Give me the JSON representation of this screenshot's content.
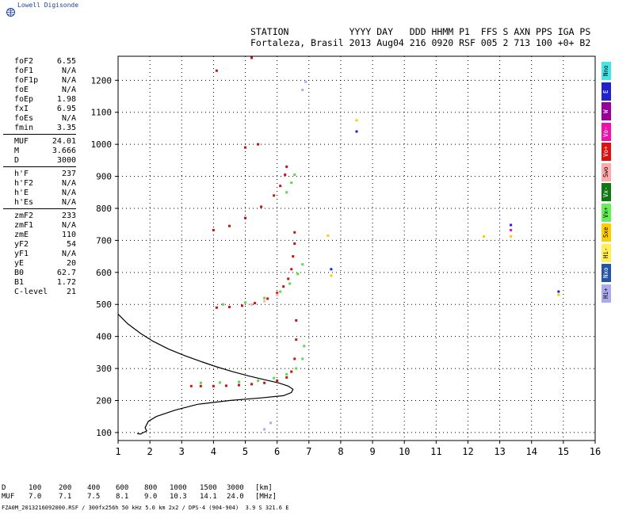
{
  "brand": {
    "name": "Lowell Digisonde"
  },
  "header": {
    "line1": "STATION           YYYY DAY   DDD HHMM P1  FFS S AXN PPS IGA PS",
    "line2": "Fortaleza, Brasil 2013 Aug04 216 0920 RSF 005 2 713 100 +0+ B2"
  },
  "params": [
    {
      "label": "foF2",
      "value": "6.55"
    },
    {
      "label": "foF1",
      "value": "N/A"
    },
    {
      "label": "foF1p",
      "value": "N/A"
    },
    {
      "label": "foE",
      "value": "N/A"
    },
    {
      "label": "foEp",
      "value": "1.98"
    },
    {
      "label": "fxI",
      "value": "6.95"
    },
    {
      "label": "foEs",
      "value": "N/A"
    },
    {
      "label": "fmin",
      "value": "3.35"
    },
    {
      "label": "MUF",
      "value": "24.01"
    },
    {
      "label": "M",
      "value": "3.666"
    },
    {
      "label": "D",
      "value": "3000"
    },
    {
      "label": "h'F",
      "value": "237"
    },
    {
      "label": "h'F2",
      "value": "N/A"
    },
    {
      "label": "h'E",
      "value": "N/A"
    },
    {
      "label": "h'Es",
      "value": "N/A"
    },
    {
      "label": "zmF2",
      "value": "233"
    },
    {
      "label": "zmF1",
      "value": "N/A"
    },
    {
      "label": "zmE",
      "value": "110"
    },
    {
      "label": "yF2",
      "value": "54"
    },
    {
      "label": "yF1",
      "value": "N/A"
    },
    {
      "label": "yE",
      "value": "20"
    },
    {
      "label": "B0",
      "value": "62.7"
    },
    {
      "label": "B1",
      "value": "1.72"
    },
    {
      "label": "C-level",
      "value": "21"
    }
  ],
  "legend": [
    {
      "label": "Nno",
      "color": "#44e5e5"
    },
    {
      "label": "E",
      "color": "#2222cc"
    },
    {
      "label": "W",
      "color": "#990099"
    },
    {
      "label": "Vo-",
      "color": "#ee11aa"
    },
    {
      "label": "Vo+",
      "color": "#dd1111"
    },
    {
      "label": "Swo",
      "color": "#ffaaaa"
    },
    {
      "label": "Vx-",
      "color": "#117711"
    },
    {
      "label": "Vx+",
      "color": "#66ee55"
    },
    {
      "label": "Sxe",
      "color": "#ffcc00"
    },
    {
      "label": "Hi-",
      "color": "#ffee55"
    },
    {
      "label": "Nxo",
      "color": "#2255aa"
    },
    {
      "label": "Hi+",
      "color": "#aaaaee"
    }
  ],
  "distance_table": {
    "D_label": "D",
    "D_values": [
      "100",
      "200",
      "400",
      "600",
      "800",
      "1000",
      "1500",
      "3000"
    ],
    "D_unit": "[km]",
    "MUF_label": "MUF",
    "MUF_values": [
      "7.0",
      "7.1",
      "7.5",
      "8.1",
      "9.0",
      "10.3",
      "14.1",
      "24.0"
    ],
    "MUF_unit": "[MHz]"
  },
  "footer": "FZA0M_2013216092000.RSF / 300fx256h 50 kHz 5.0 km 2x2 / DPS-4 (904-904)  3.9 S 321.6 E",
  "chart_data": {
    "type": "scatter",
    "xlim": [
      1,
      16
    ],
    "ylim": [
      75,
      1275
    ],
    "x_ticks": [
      1,
      2,
      3,
      4,
      5,
      6,
      7,
      8,
      9,
      10,
      11,
      12,
      13,
      14,
      15,
      16
    ],
    "y_ticks": [
      100,
      200,
      300,
      400,
      500,
      600,
      700,
      800,
      900,
      1000,
      1100,
      1200
    ],
    "grid": true,
    "series": [
      {
        "name": "Vo+",
        "color": "#cc1111",
        "points": [
          [
            3.3,
            245
          ],
          [
            3.6,
            245
          ],
          [
            4.0,
            245
          ],
          [
            4.4,
            246
          ],
          [
            4.8,
            248
          ],
          [
            5.2,
            251
          ],
          [
            5.6,
            255
          ],
          [
            6.0,
            262
          ],
          [
            6.3,
            272
          ],
          [
            6.45,
            290
          ],
          [
            6.55,
            330
          ],
          [
            6.6,
            390
          ],
          [
            6.6,
            450
          ],
          [
            4.1,
            490
          ],
          [
            4.5,
            492
          ],
          [
            4.9,
            496
          ],
          [
            5.3,
            504
          ],
          [
            5.7,
            518
          ],
          [
            6.0,
            536
          ],
          [
            6.2,
            556
          ],
          [
            6.35,
            580
          ],
          [
            6.45,
            610
          ],
          [
            6.5,
            650
          ],
          [
            6.55,
            690
          ],
          [
            6.55,
            725
          ],
          [
            4.0,
            732
          ],
          [
            4.5,
            745
          ],
          [
            5.0,
            770
          ],
          [
            5.5,
            805
          ],
          [
            5.9,
            840
          ],
          [
            6.1,
            870
          ],
          [
            6.25,
            905
          ],
          [
            6.3,
            930
          ],
          [
            5.0,
            990
          ],
          [
            5.4,
            1000
          ],
          [
            4.1,
            1230
          ],
          [
            5.2,
            1270
          ]
        ]
      },
      {
        "name": "Vx+",
        "color": "#55dd44",
        "points": [
          [
            3.6,
            255
          ],
          [
            4.2,
            256
          ],
          [
            4.8,
            258
          ],
          [
            5.4,
            262
          ],
          [
            5.9,
            270
          ],
          [
            6.3,
            282
          ],
          [
            6.6,
            300
          ],
          [
            6.8,
            330
          ],
          [
            6.85,
            370
          ],
          [
            4.3,
            500
          ],
          [
            5.0,
            506
          ],
          [
            5.6,
            520
          ],
          [
            6.1,
            540
          ],
          [
            6.4,
            565
          ],
          [
            6.65,
            595
          ],
          [
            6.8,
            625
          ],
          [
            6.3,
            850
          ],
          [
            6.45,
            880
          ],
          [
            6.55,
            905
          ]
        ]
      },
      {
        "name": "Swo",
        "color": "#ffaaaa",
        "points": [
          [
            5.2,
            500
          ],
          [
            5.6,
            510
          ],
          [
            6.0,
            530
          ]
        ]
      },
      {
        "name": "Hi+",
        "color": "#aaaaee",
        "points": [
          [
            6.8,
            1170
          ],
          [
            6.9,
            1195
          ],
          [
            5.6,
            110
          ],
          [
            5.8,
            130
          ]
        ]
      },
      {
        "name": "Sxe",
        "color": "#ffcc00",
        "points": [
          [
            7.6,
            715
          ],
          [
            7.7,
            590
          ],
          [
            8.5,
            1075
          ],
          [
            12.5,
            712
          ],
          [
            13.35,
            712
          ],
          [
            14.85,
            530
          ]
        ]
      },
      {
        "name": "E",
        "color": "#2222cc",
        "points": [
          [
            7.7,
            610
          ],
          [
            8.5,
            1040
          ],
          [
            13.35,
            748
          ],
          [
            14.85,
            540
          ]
        ]
      },
      {
        "name": "Vo-",
        "color": "#ee11aa",
        "points": [
          [
            13.35,
            732
          ]
        ]
      }
    ],
    "profile": [
      [
        1.0,
        470
      ],
      [
        1.3,
        440
      ],
      [
        1.7,
        410
      ],
      [
        2.1,
        385
      ],
      [
        2.6,
        360
      ],
      [
        3.1,
        340
      ],
      [
        3.6,
        322
      ],
      [
        4.1,
        305
      ],
      [
        4.6,
        290
      ],
      [
        5.1,
        277
      ],
      [
        5.6,
        265
      ],
      [
        6.05,
        255
      ],
      [
        6.35,
        245
      ],
      [
        6.5,
        235
      ],
      [
        6.45,
        225
      ],
      [
        6.2,
        215
      ],
      [
        5.5,
        208
      ],
      [
        4.5,
        200
      ],
      [
        3.5,
        188
      ],
      [
        2.8,
        170
      ],
      [
        2.2,
        150
      ],
      [
        1.95,
        135
      ],
      [
        1.85,
        115
      ],
      [
        1.9,
        105
      ],
      [
        1.8,
        100
      ],
      [
        1.7,
        95
      ],
      [
        1.6,
        97
      ]
    ],
    "profile_color": "#000000"
  }
}
